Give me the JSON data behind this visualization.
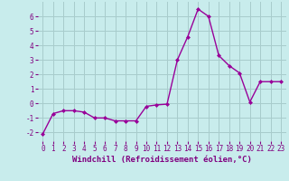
{
  "x": [
    0,
    1,
    2,
    3,
    4,
    5,
    6,
    7,
    8,
    9,
    10,
    11,
    12,
    13,
    14,
    15,
    16,
    17,
    18,
    19,
    20,
    21,
    22,
    23
  ],
  "y": [
    -2.1,
    -0.7,
    -0.5,
    -0.5,
    -0.6,
    -1.0,
    -1.0,
    -1.2,
    -1.2,
    -1.2,
    -0.2,
    -0.1,
    -0.05,
    3.0,
    4.6,
    6.5,
    6.0,
    3.3,
    2.6,
    2.1,
    0.1,
    1.5,
    1.5,
    1.5
  ],
  "line_color": "#990099",
  "marker": "D",
  "marker_size": 2.0,
  "linewidth": 1.0,
  "bg_color": "#c8ecec",
  "grid_color": "#a8cccc",
  "xlabel": "Windchill (Refroidissement éolien,°C)",
  "xlabel_color": "#800080",
  "xlabel_fontsize": 6.5,
  "tick_color": "#800080",
  "tick_fontsize": 5.5,
  "yticks": [
    -2,
    -1,
    0,
    1,
    2,
    3,
    4,
    5,
    6
  ],
  "ylim": [
    -2.6,
    7.0
  ],
  "xlim": [
    -0.5,
    23.5
  ]
}
